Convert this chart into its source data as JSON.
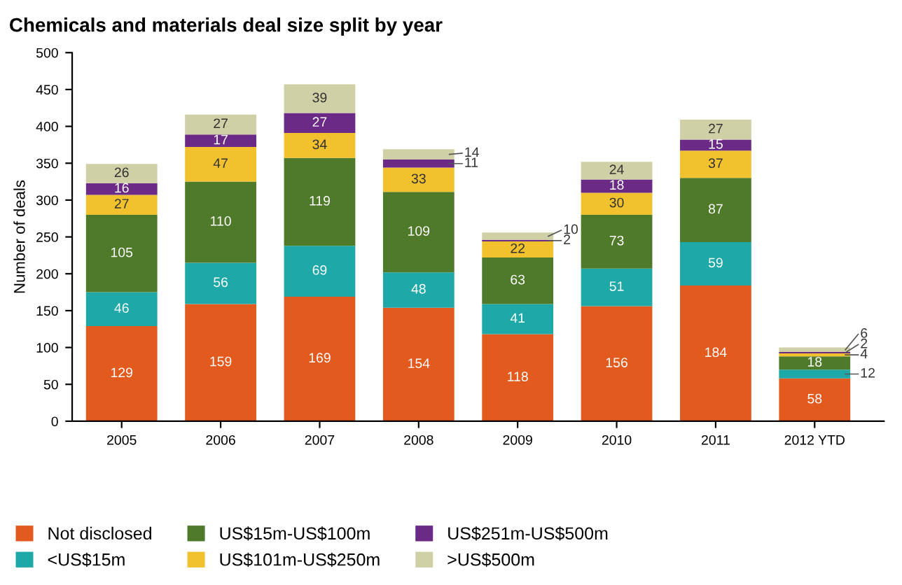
{
  "chart_data": {
    "type": "bar",
    "stacked": true,
    "title": "Chemicals and materials deal size split by year",
    "ylabel": "Number of deals",
    "categories": [
      "2005",
      "2006",
      "2007",
      "2008",
      "2009",
      "2010",
      "2011",
      "2012 YTD"
    ],
    "series": [
      {
        "name": "Not disclosed",
        "color": "#e35a1f",
        "values": [
          129,
          159,
          169,
          154,
          118,
          156,
          184,
          58
        ]
      },
      {
        "name": "<US$15m",
        "color": "#1fa8a8",
        "values": [
          46,
          56,
          69,
          48,
          41,
          51,
          59,
          12
        ]
      },
      {
        "name": "US$15m-US$100m",
        "color": "#4f7a2a",
        "values": [
          105,
          110,
          119,
          109,
          63,
          73,
          87,
          18
        ]
      },
      {
        "name": "US$101m-US$250m",
        "color": "#f2c12e",
        "values": [
          27,
          47,
          34,
          33,
          22,
          30,
          37,
          4
        ]
      },
      {
        "name": "US$251m-US$500m",
        "color": "#6a2a86",
        "values": [
          16,
          17,
          27,
          11,
          2,
          18,
          15,
          2
        ]
      },
      {
        "name": ">US$500m",
        "color": "#cfd0a6",
        "values": [
          26,
          27,
          39,
          14,
          10,
          24,
          27,
          6
        ]
      }
    ],
    "ylim": [
      0,
      500
    ],
    "yticks": [
      0,
      50,
      100,
      150,
      200,
      250,
      300,
      350,
      400,
      450,
      500
    ],
    "grid": false,
    "legend": "bottom",
    "data_labels": true
  }
}
